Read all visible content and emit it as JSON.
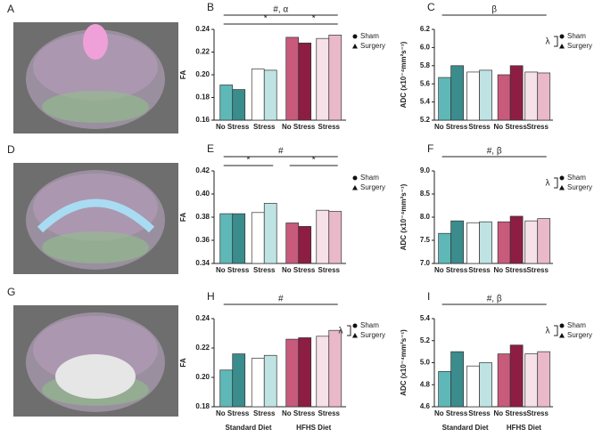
{
  "images": [
    {
      "label": "A"
    },
    {
      "label": "D"
    },
    {
      "label": "G"
    }
  ],
  "chart_data": [
    {
      "type": "bar",
      "panel": "B",
      "ylabel": "FA",
      "categories": [
        "No Stress",
        "Stress",
        "No Stress",
        "Stress"
      ],
      "ylim": [
        0.16,
        0.24
      ],
      "yticks": [
        0.16,
        0.18,
        {
          "value": 0.2,
          "label": "0.20"
        },
        0.22,
        0.24
      ],
      "series": [
        {
          "name": "Sham",
          "colors": [
            "#5fb8b8",
            "#ffffff",
            "#c85a7c",
            "#f6e1e8"
          ],
          "values": [
            0.191,
            0.205,
            0.233,
            0.232
          ]
        },
        {
          "name": "Surgery",
          "colors": [
            "#3b8c8c",
            "#bfe3e3",
            "#8e1d44",
            "#e9b9c9"
          ],
          "values": [
            0.187,
            0.204,
            0.228,
            0.235
          ]
        }
      ],
      "annotations": [
        "#, α",
        "*",
        "*"
      ]
    },
    {
      "type": "bar",
      "panel": "C",
      "ylabel": "ADC (x10⁻⁴mm²s⁻¹)",
      "categories": [
        "No Stress",
        "Stress",
        "No Stress",
        "Stress"
      ],
      "ylim": [
        5.2,
        6.2
      ],
      "yticks": [
        5.2,
        5.4,
        5.6,
        5.8,
        {
          "value": 6.0,
          "label": "6.0"
        },
        6.2
      ],
      "series": [
        {
          "name": "Sham",
          "colors": [
            "#5fb8b8",
            "#ffffff",
            "#c85a7c",
            "#f6e1e8"
          ],
          "values": [
            5.67,
            5.73,
            5.7,
            5.73
          ]
        },
        {
          "name": "Surgery",
          "colors": [
            "#3b8c8c",
            "#bfe3e3",
            "#8e1d44",
            "#e9b9c9"
          ],
          "values": [
            5.8,
            5.75,
            5.8,
            5.72
          ]
        }
      ],
      "annotations": [
        "β",
        "λ"
      ]
    },
    {
      "type": "bar",
      "panel": "E",
      "ylabel": "FA",
      "categories": [
        "No Stress",
        "Stress",
        "No Stress",
        "Stress"
      ],
      "ylim": [
        0.34,
        0.42
      ],
      "yticks": [
        0.34,
        0.36,
        0.38,
        {
          "value": 0.4,
          "label": "0.40"
        },
        0.42
      ],
      "series": [
        {
          "name": "Sham",
          "colors": [
            "#5fb8b8",
            "#ffffff",
            "#c85a7c",
            "#f6e1e8"
          ],
          "values": [
            0.383,
            0.384,
            0.375,
            0.386
          ]
        },
        {
          "name": "Surgery",
          "colors": [
            "#3b8c8c",
            "#bfe3e3",
            "#8e1d44",
            "#e9b9c9"
          ],
          "values": [
            0.383,
            0.392,
            0.372,
            0.385
          ]
        }
      ],
      "annotations": [
        "#",
        "*",
        "*"
      ]
    },
    {
      "type": "bar",
      "panel": "F",
      "ylabel": "ADC (x10⁻⁴mm²s⁻¹)",
      "categories": [
        "No Stress",
        "Stress",
        "No Stress",
        "Stress"
      ],
      "ylim": [
        7.0,
        9.0
      ],
      "yticks": [
        {
          "value": 7.0,
          "label": "7.0"
        },
        7.5,
        {
          "value": 8.0,
          "label": "8.0"
        },
        8.5,
        {
          "value": 9.0,
          "label": "9.0"
        }
      ],
      "series": [
        {
          "name": "Sham",
          "colors": [
            "#5fb8b8",
            "#ffffff",
            "#c85a7c",
            "#f6e1e8"
          ],
          "values": [
            7.65,
            7.88,
            7.9,
            7.92
          ]
        },
        {
          "name": "Surgery",
          "colors": [
            "#3b8c8c",
            "#bfe3e3",
            "#8e1d44",
            "#e9b9c9"
          ],
          "values": [
            7.92,
            7.9,
            8.02,
            7.97
          ]
        }
      ],
      "annotations": [
        "#, β",
        "λ"
      ]
    },
    {
      "type": "bar",
      "panel": "H",
      "ylabel": "FA",
      "categories": [
        "No Stress",
        "Stress",
        "No Stress",
        "Stress"
      ],
      "groups": [
        "Standard Diet",
        "HFHS Diet"
      ],
      "ylim": [
        0.18,
        0.24
      ],
      "yticks": [
        0.18,
        {
          "value": 0.2,
          "label": "0.20"
        },
        0.22,
        0.24
      ],
      "series": [
        {
          "name": "Sham",
          "colors": [
            "#5fb8b8",
            "#ffffff",
            "#c85a7c",
            "#f6e1e8"
          ],
          "values": [
            0.205,
            0.213,
            0.226,
            0.228
          ]
        },
        {
          "name": "Surgery",
          "colors": [
            "#3b8c8c",
            "#bfe3e3",
            "#8e1d44",
            "#e9b9c9"
          ],
          "values": [
            0.216,
            0.215,
            0.227,
            0.232
          ]
        }
      ],
      "annotations": [
        "#",
        "λ"
      ]
    },
    {
      "type": "bar",
      "panel": "I",
      "ylabel": "ADC (x10⁻⁴mm²s⁻¹)",
      "categories": [
        "No Stress",
        "Stress",
        "No Stress",
        "Stress"
      ],
      "groups": [
        "Standard Diet",
        "HFHS Diet"
      ],
      "ylim": [
        4.6,
        5.4
      ],
      "yticks": [
        4.6,
        4.8,
        {
          "value": 5.0,
          "label": "5.0"
        },
        5.2,
        5.4
      ],
      "series": [
        {
          "name": "Sham",
          "colors": [
            "#5fb8b8",
            "#ffffff",
            "#c85a7c",
            "#f6e1e8"
          ],
          "values": [
            4.92,
            4.97,
            5.08,
            5.08
          ]
        },
        {
          "name": "Surgery",
          "colors": [
            "#3b8c8c",
            "#bfe3e3",
            "#8e1d44",
            "#e9b9c9"
          ],
          "values": [
            5.1,
            5.0,
            5.16,
            5.1
          ]
        }
      ],
      "annotations": [
        "#, β",
        "λ"
      ]
    }
  ]
}
